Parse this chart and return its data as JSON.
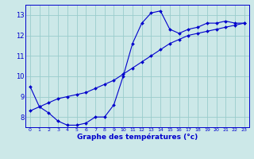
{
  "xlabel": "Graphe des températures (°c)",
  "background_color": "#cce8e8",
  "grid_color": "#99cccc",
  "line_color": "#0000cc",
  "x_hours": [
    0,
    1,
    2,
    3,
    4,
    5,
    6,
    7,
    8,
    9,
    10,
    11,
    12,
    13,
    14,
    15,
    16,
    17,
    18,
    19,
    20,
    21,
    22,
    23
  ],
  "temp_curve": [
    9.5,
    8.5,
    8.2,
    7.8,
    7.6,
    7.6,
    7.7,
    8.0,
    8.0,
    8.6,
    10.0,
    11.6,
    12.6,
    13.1,
    13.2,
    12.3,
    12.1,
    12.3,
    12.4,
    12.6,
    12.6,
    12.7,
    12.6,
    12.6
  ],
  "temp_straight": [
    8.3,
    8.5,
    8.7,
    8.9,
    9.0,
    9.1,
    9.2,
    9.4,
    9.6,
    9.8,
    10.1,
    10.4,
    10.7,
    11.0,
    11.3,
    11.6,
    11.8,
    12.0,
    12.1,
    12.2,
    12.3,
    12.4,
    12.5,
    12.6
  ],
  "ylim": [
    7.5,
    13.5
  ],
  "yticks": [
    8,
    9,
    10,
    11,
    12,
    13
  ],
  "xlim": [
    -0.5,
    23.5
  ],
  "figwidth": 3.2,
  "figheight": 2.0,
  "dpi": 100
}
